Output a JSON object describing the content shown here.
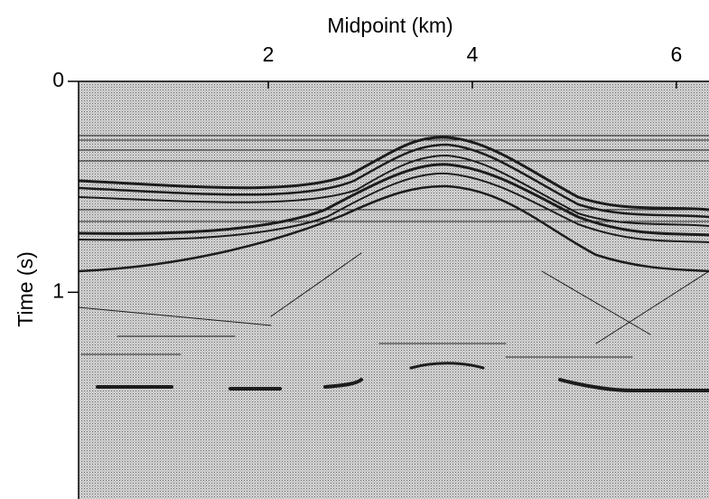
{
  "chart_data": {
    "type": "seismic",
    "xlabel": "Midpoint (km)",
    "ylabel": "Time (s)",
    "xlim": [
      0.14,
      6.32
    ],
    "xticks": [
      2,
      4,
      6
    ],
    "ylim": [
      0,
      1.98
    ],
    "yticks": [
      0,
      1
    ]
  }
}
